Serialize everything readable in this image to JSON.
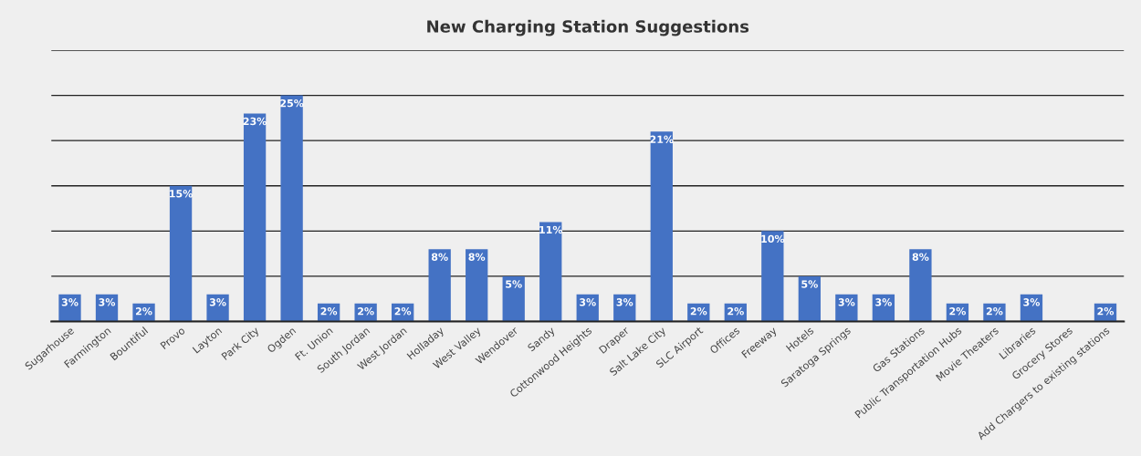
{
  "chart_data": {
    "type": "bar",
    "title": "New Charging Station Suggestions",
    "categories": [
      "Sugarhouse",
      "Farmington",
      "Bountiful",
      "Provo",
      "Layton",
      "Park City",
      "Ogden",
      "Ft. Union",
      "South Jordan",
      "West Jordan",
      "Holladay",
      "West Valley",
      "Wendover",
      "Sandy",
      "Cottonwood Heights",
      "Draper",
      "Salt Lake City",
      "SLC Airport",
      "Offices",
      "Freeway",
      "Hotels",
      "Saratoga Springs",
      null,
      "Gas Stations",
      "Public Transportation Hubs",
      "Movie Theaters",
      "Libraries",
      "Grocery Stores",
      "Add Chargers to existing stations"
    ],
    "values": [
      3,
      3,
      2,
      15,
      3,
      23,
      25,
      2,
      2,
      2,
      8,
      8,
      5,
      11,
      3,
      3,
      21,
      2,
      2,
      10,
      5,
      3,
      3,
      8,
      2,
      2,
      3,
      0,
      2
    ],
    "value_labels": [
      "3%",
      "3%",
      "2%",
      "15%",
      "3%",
      "23%",
      "25%",
      "2%",
      "2%",
      "2%",
      "8%",
      "8%",
      "5%",
      "11%",
      "3%",
      "3%",
      "21%",
      "2%",
      "2%",
      "10%",
      "5%",
      "3%",
      "3%",
      "8%",
      "2%",
      "2%",
      "3%",
      null,
      "2%"
    ],
    "color": "#4472c4",
    "ylim": [
      0,
      30
    ],
    "yticks": [
      {
        "value": 0,
        "label": null
      },
      {
        "value": 5,
        "label": null
      },
      {
        "value": 10,
        "label": null
      },
      {
        "value": 15,
        "label": null
      },
      {
        "value": 20,
        "label": null
      },
      {
        "value": 25,
        "label": null
      },
      {
        "value": 30,
        "label": null
      }
    ],
    "grid": "y",
    "tick_labels": "x"
  }
}
